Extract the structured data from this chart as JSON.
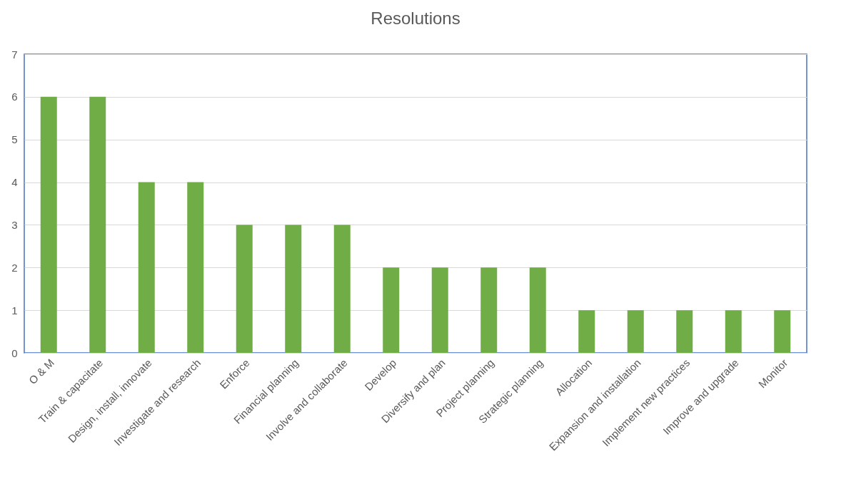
{
  "chart_data": {
    "type": "bar",
    "title": "Resolutions",
    "categories": [
      "O & M",
      "Train & capacitate",
      "Design, install, innovate",
      "Investigate and research",
      "Enforce",
      "Financial planning",
      "Involve and collaborate",
      "Develop",
      "Diversify and plan",
      "Project planning",
      "Strategic planning",
      "Allocation",
      "Expansion and installation",
      "Implement new practices",
      "Improve and upgrade",
      "Monitor"
    ],
    "values": [
      6,
      6,
      4,
      4,
      3,
      3,
      3,
      2,
      2,
      2,
      2,
      1,
      1,
      1,
      1,
      1
    ],
    "color": "#70ad47",
    "ylim": [
      0,
      7
    ],
    "yticks": [
      0,
      1,
      2,
      3,
      4,
      5,
      6,
      7
    ],
    "grid": "y"
  }
}
